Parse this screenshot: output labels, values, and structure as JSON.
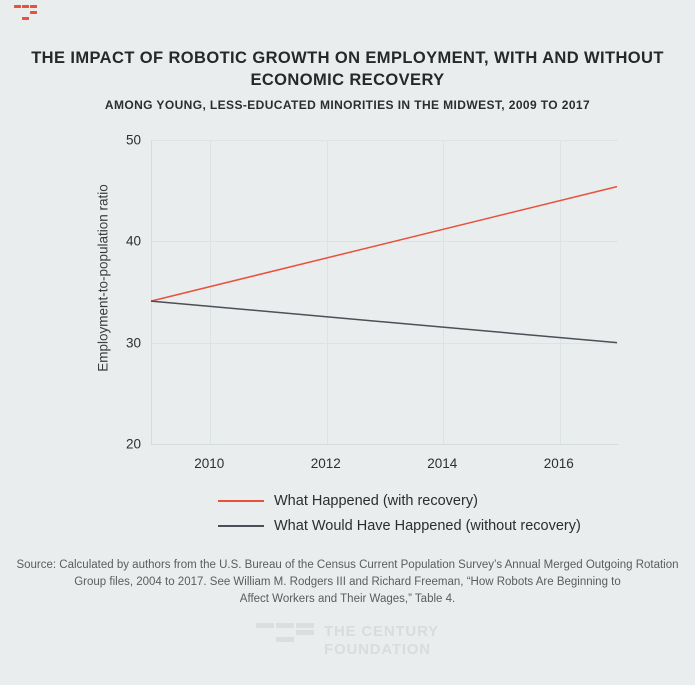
{
  "header": {
    "title_lines": [
      "THE IMPACT OF ROBOTIC GROWTH ON EMPLOYMENT, WITH AND WITHOUT",
      "ECONOMIC RECOVERY"
    ],
    "subtitle": "AMONG YOUNG, LESS-EDUCATED MINORITIES IN THE MIDWEST, 2009 TO 2017"
  },
  "chart_data": {
    "type": "line",
    "title": "",
    "xlabel": "",
    "ylabel": "Employment-to-population ratio",
    "xlim": [
      2009,
      2017
    ],
    "ylim": [
      20,
      50
    ],
    "x_ticks": [
      "2010",
      "2012",
      "2014",
      "2016"
    ],
    "x_tick_values": [
      2010,
      2012,
      2014,
      2016
    ],
    "y_ticks": [
      "50",
      "40",
      "30",
      "20"
    ],
    "y_tick_values": [
      50,
      40,
      30,
      20
    ],
    "grid": true,
    "legend_position": "bottom",
    "series": [
      {
        "name": "What Happened (with recovery)",
        "color": "#e8513c",
        "x": [
          2009,
          2017
        ],
        "values": [
          34.1,
          45.4
        ]
      },
      {
        "name": "What Would Have Happened (without recovery)",
        "color": "#4b4f57",
        "x": [
          2009,
          2017
        ],
        "values": [
          34.1,
          30.0
        ]
      }
    ]
  },
  "source": {
    "lines": [
      "Source: Calculated by authors from the U.S. Bureau of the Census Current Population Survey’s Annual Merged Outgoing Rotation",
      "Group files, 2004 to 2017. See William M. Rodgers III and Richard Freeman, “How Robots Are Beginning to",
      "Affect Workers and Their Wages,” Table 4."
    ]
  },
  "footer": {
    "logo_text_lines": [
      "THE CENTURY",
      "FOUNDATION"
    ]
  },
  "colors": {
    "background": "#e9eded",
    "brand_red": "#e8513c",
    "line_dark": "#4b4f57",
    "gridline": "#dde2e2",
    "logo_gray": "#d9dcdd"
  }
}
